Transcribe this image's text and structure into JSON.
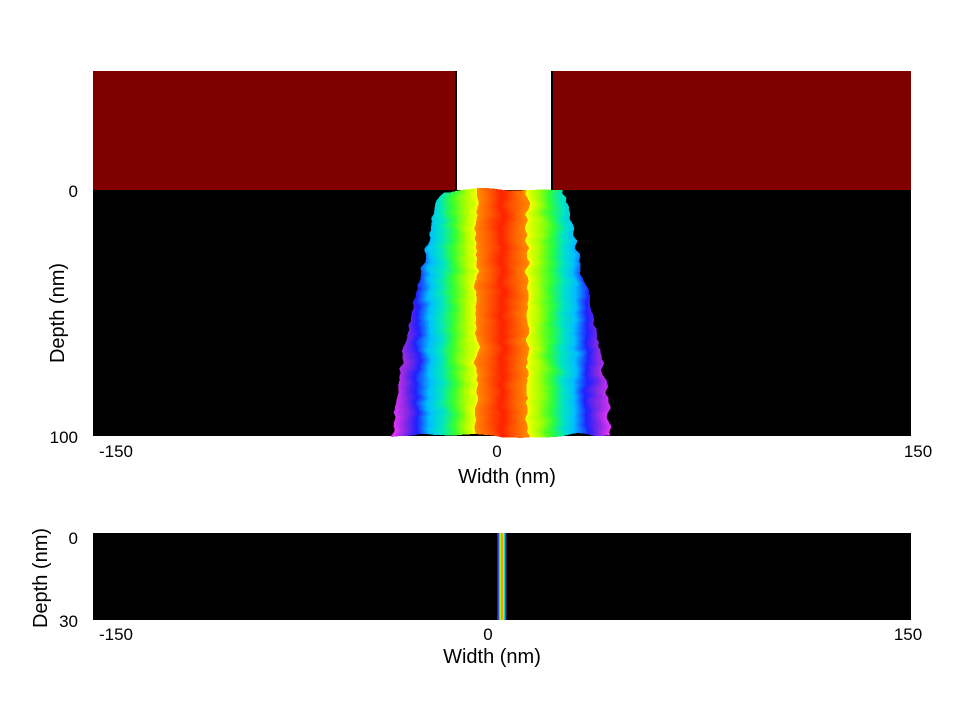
{
  "colors": {
    "mask": "#800000",
    "background": "#000000",
    "colormap": [
      "#ee33ff",
      "#8a2be2",
      "#2020ff",
      "#00bfff",
      "#00e5c0",
      "#33ff33",
      "#aaff00",
      "#ffff00",
      "#ff9900",
      "#ff2200"
    ]
  },
  "chart_data": [
    {
      "type": "heatmap",
      "title": "",
      "xlabel": "Width (nm)",
      "ylabel": "Depth (nm)",
      "xlim": [
        -150,
        150
      ],
      "ylim": [
        0,
        100
      ],
      "x_ticks": [
        "-150",
        "0",
        "150"
      ],
      "y_ticks": [
        "0",
        "100"
      ],
      "mask": {
        "present": true,
        "opening_x": [
          -17,
          17
        ],
        "color": "#800000"
      },
      "profile": {
        "depth": [
          0,
          5,
          10,
          20,
          30,
          40,
          50,
          60,
          70,
          80,
          90,
          100
        ],
        "outer_halfwidth": [
          22,
          24,
          25,
          27,
          29,
          31,
          33,
          35,
          37,
          38,
          39,
          40
        ],
        "inner_halfwidth": [
          17,
          17,
          17,
          17,
          17,
          17,
          17,
          17,
          17,
          17,
          17,
          17
        ]
      }
    },
    {
      "type": "heatmap",
      "title": "",
      "xlabel": "Width (nm)",
      "ylabel": "Depth (nm)",
      "xlim": [
        -150,
        150
      ],
      "ylim": [
        0,
        30
      ],
      "x_ticks": [
        "-150",
        "0",
        "150"
      ],
      "y_ticks": [
        "0",
        "30"
      ],
      "mask": {
        "present": false
      },
      "profile": {
        "depth": [
          0,
          30
        ],
        "outer_halfwidth": [
          1.6,
          1.6
        ],
        "inner_halfwidth": [
          1.6,
          1.6
        ]
      }
    }
  ]
}
